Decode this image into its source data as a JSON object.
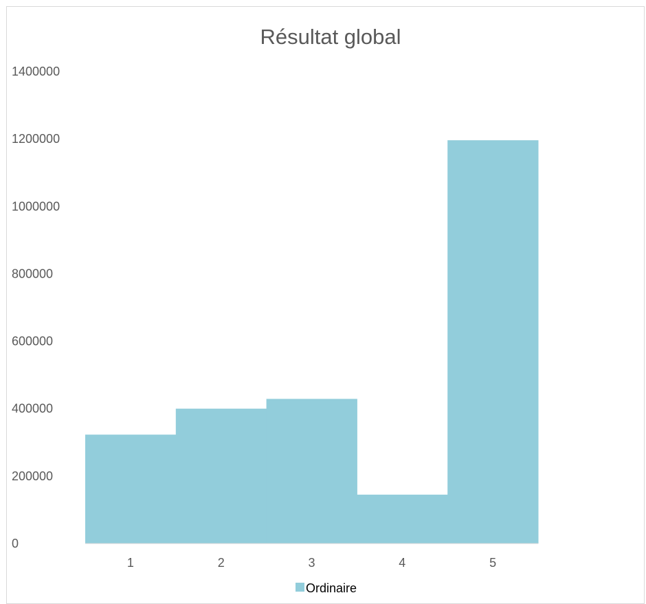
{
  "chart_data": {
    "type": "area",
    "title": "Résultat global",
    "xlabel": "",
    "ylabel": "",
    "categories": [
      "1",
      "2",
      "3",
      "4",
      "5"
    ],
    "series": [
      {
        "name": "Ordinaire",
        "values": [
          323000,
          400000,
          429000,
          145000,
          1196000
        ]
      }
    ],
    "ylim": [
      0,
      1400000
    ],
    "yticks": [
      "0",
      "200000",
      "400000",
      "600000",
      "800000",
      "1000000",
      "1200000",
      "1400000"
    ],
    "grid": false,
    "legend_position": "bottom"
  },
  "colors": {
    "series": "#92cddb",
    "axis": "#d9d9d9",
    "text": "#595959"
  }
}
